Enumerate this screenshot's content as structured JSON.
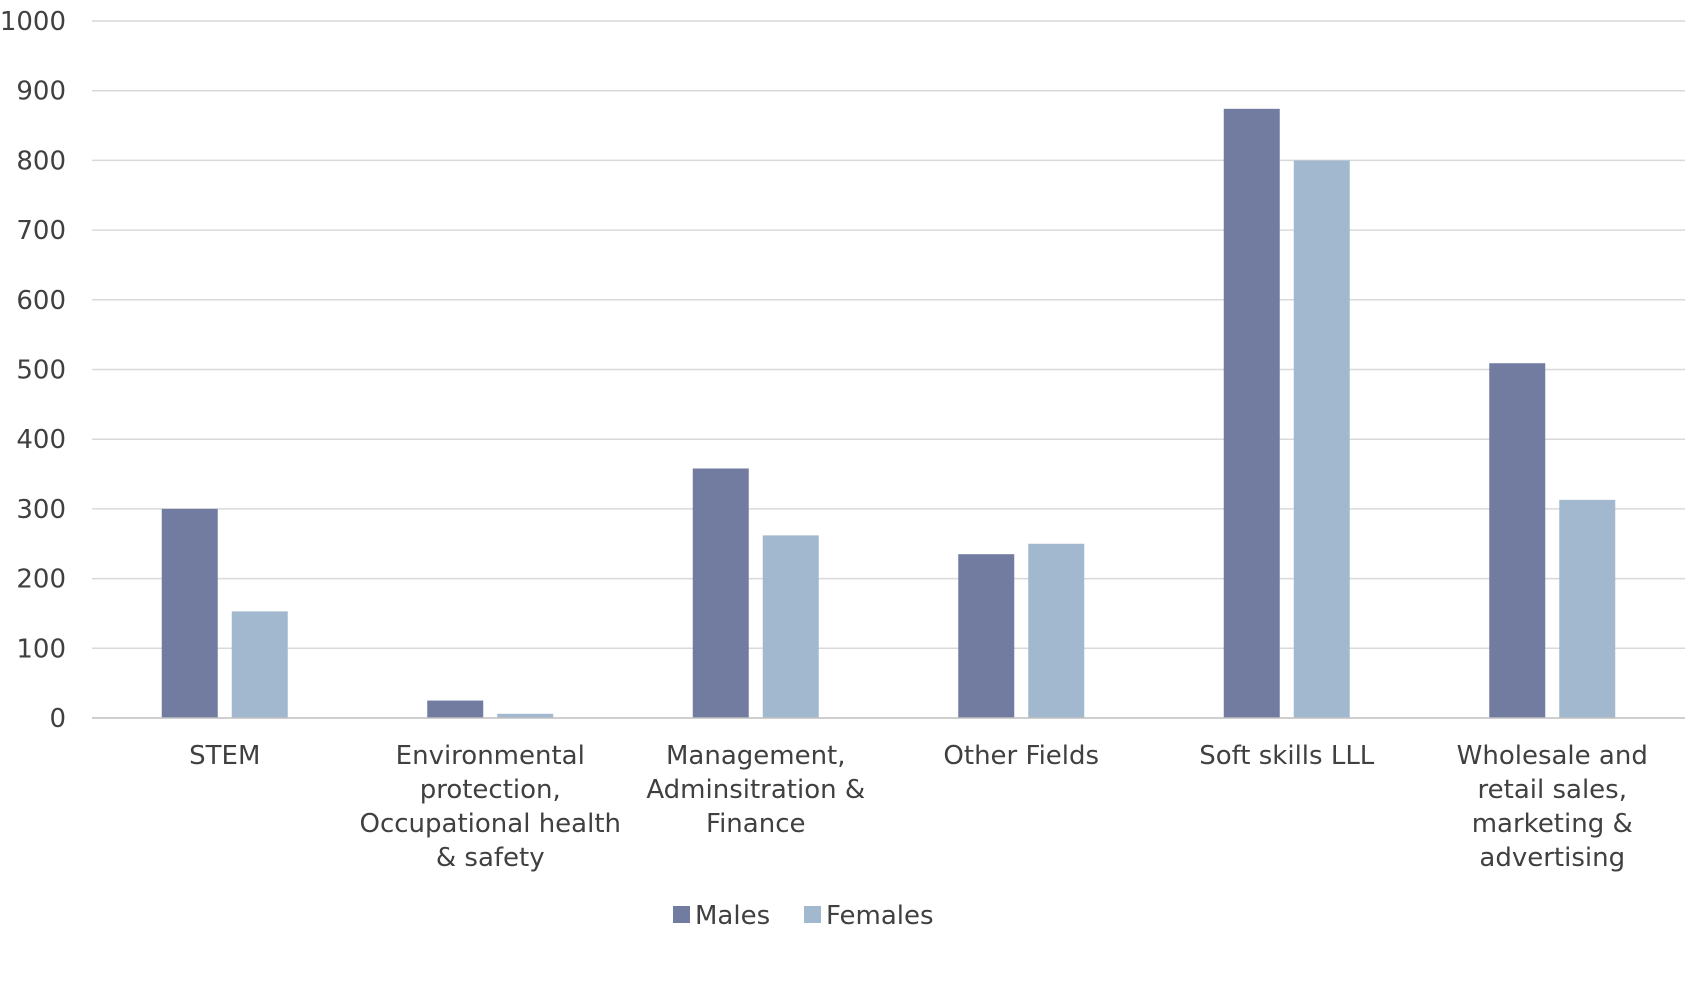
{
  "chart_data": {
    "type": "bar",
    "title": "",
    "xlabel": "",
    "ylabel": "",
    "ylim": [
      0,
      1000
    ],
    "yticks": [
      "0",
      "100",
      "200",
      "300",
      "400",
      "500",
      "600",
      "700",
      "800",
      "900",
      "1000"
    ],
    "grid": "horizontal",
    "legend_position": "bottom",
    "categories": [
      [
        "STEM"
      ],
      [
        "Environmental",
        "protection,",
        "Occupational health",
        "& safety"
      ],
      [
        "Management,",
        "Adminsitration &",
        "Finance"
      ],
      [
        "Other Fields"
      ],
      [
        "Soft skills LLL"
      ],
      [
        "Wholesale and",
        "retail sales,",
        "marketing &",
        "advertising"
      ]
    ],
    "series": [
      {
        "name": "Males",
        "color": "#727ca1",
        "values": [
          300,
          25,
          358,
          235,
          874,
          509
        ]
      },
      {
        "name": "Females",
        "color": "#a2b8cf",
        "values": [
          153,
          6,
          262,
          250,
          800,
          313
        ]
      }
    ]
  }
}
